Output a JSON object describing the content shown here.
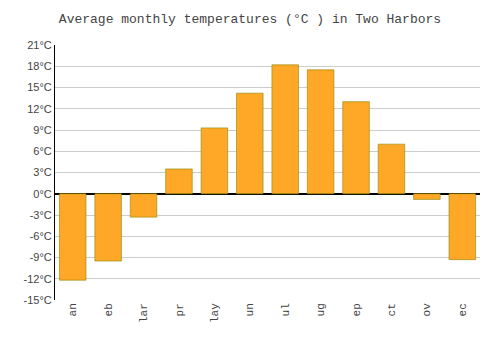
{
  "chart_data": {
    "type": "bar",
    "title": "Average monthly temperatures (°C ) in Two Harbors",
    "categories": [
      "an",
      "eb",
      "lar",
      "pr",
      "lay",
      "un",
      "ul",
      "ug",
      "ep",
      "ct",
      "ov",
      "ec"
    ],
    "values": [
      -12.2,
      -9.5,
      -3.3,
      3.5,
      9.3,
      14.2,
      18.2,
      17.5,
      13.0,
      7.0,
      -0.8,
      -9.3
    ],
    "color": "#FFA726",
    "ylim": [
      -15,
      21
    ],
    "yticks": [
      {
        "value": -15,
        "label": "-15°C"
      },
      {
        "value": -12,
        "label": "-12°C"
      },
      {
        "value": -9,
        "label": "-9°C"
      },
      {
        "value": -6,
        "label": "-6°C"
      },
      {
        "value": -3,
        "label": "-3°C"
      },
      {
        "value": 0,
        "label": "0°C"
      },
      {
        "value": 3,
        "label": "3°C"
      },
      {
        "value": 6,
        "label": "6°C"
      },
      {
        "value": 9,
        "label": "9°C"
      },
      {
        "value": 12,
        "label": "12°C"
      },
      {
        "value": 15,
        "label": "15°C"
      },
      {
        "value": 18,
        "label": "18°C"
      },
      {
        "value": 21,
        "label": "21°C"
      }
    ],
    "grid": true
  }
}
